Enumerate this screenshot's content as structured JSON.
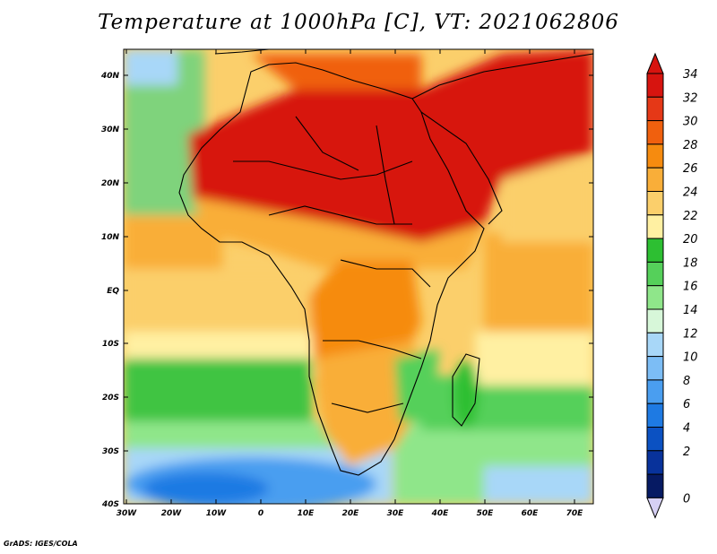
{
  "title": "Temperature at 1000hPa [C], VT: 2021062806",
  "credit": "GrADS: IGES/COLA",
  "map": {
    "lon_labels": [
      "30W",
      "20W",
      "10W",
      "0",
      "10E",
      "20E",
      "30E",
      "40E",
      "50E",
      "60E",
      "70E"
    ],
    "lat_labels": [
      "40N",
      "30N",
      "20N",
      "10N",
      "EQ",
      "10S",
      "20S",
      "30S",
      "40S"
    ],
    "lon_range": [
      -30,
      75
    ],
    "lat_range": [
      -40,
      45
    ]
  },
  "colorbar": {
    "labels": [
      "34",
      "32",
      "30",
      "28",
      "26",
      "24",
      "22",
      "20",
      "18",
      "16",
      "14",
      "12",
      "10",
      "8",
      "6",
      "4",
      "2",
      "0"
    ],
    "colors": [
      "#d7140f",
      "#e53817",
      "#f0600e",
      "#f68b0f",
      "#f9ae39",
      "#fbcf6b",
      "#fff0a2",
      "#2dbf32",
      "#55d05a",
      "#8fe68a",
      "#d7f7d9",
      "#a8d7f8",
      "#7cbdf5",
      "#4a9ef0",
      "#1e7ae3",
      "#0b51c2",
      "#08329b",
      "#061a63"
    ]
  },
  "chart_data": {
    "type": "heatmap",
    "title": "Temperature at 1000hPa [C], VT: 2021062806",
    "x_ticks": [
      "30W",
      "20W",
      "10W",
      "0",
      "10E",
      "20E",
      "30E",
      "40E",
      "50E",
      "60E",
      "70E"
    ],
    "y_ticks": [
      "40N",
      "30N",
      "20N",
      "10N",
      "EQ",
      "10S",
      "20S",
      "30S",
      "40S"
    ],
    "xlim": [
      -30,
      75
    ],
    "ylim": [
      -40,
      45
    ],
    "colorbar_levels": [
      0,
      2,
      4,
      6,
      8,
      10,
      12,
      14,
      16,
      18,
      20,
      22,
      24,
      26,
      28,
      30,
      32,
      34
    ]
  }
}
